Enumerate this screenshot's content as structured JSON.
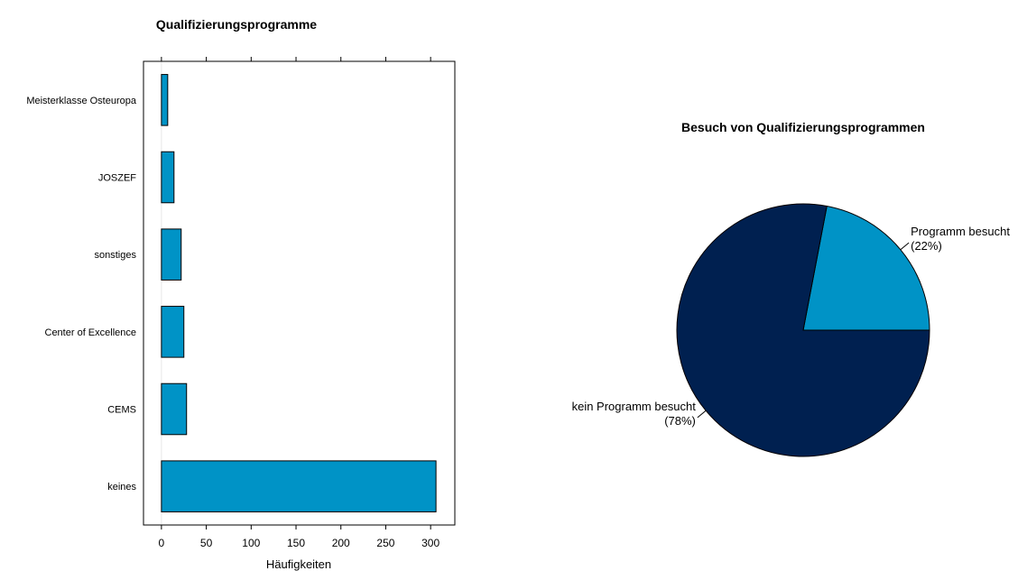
{
  "chart_data": [
    {
      "type": "bar",
      "orientation": "horizontal",
      "title": "Qualifizierungsprogramme",
      "xlabel": "Häufigkeiten",
      "ylabel": "",
      "categories": [
        "keines",
        "CEMS",
        "Center of Excellence",
        "sonstiges",
        "JOSZEF",
        "Meisterklasse Osteuropa"
      ],
      "values": [
        306,
        28,
        25,
        22,
        14,
        7
      ],
      "xlim": [
        -20,
        327
      ],
      "xticks": [
        0,
        50,
        100,
        150,
        200,
        250,
        300
      ],
      "grid": false,
      "colors": {
        "bar": "#0093c6",
        "outline": "#000000"
      }
    },
    {
      "type": "pie",
      "title": "Besuch von Qualifizierungsprogrammen",
      "slices": [
        {
          "label": "Programm besucht",
          "percent_label": "(22%)",
          "value": 22,
          "color": "#0093c6"
        },
        {
          "label": "kein Programm besucht",
          "percent_label": "(78%)",
          "value": 78,
          "color": "#002050"
        }
      ]
    }
  ]
}
